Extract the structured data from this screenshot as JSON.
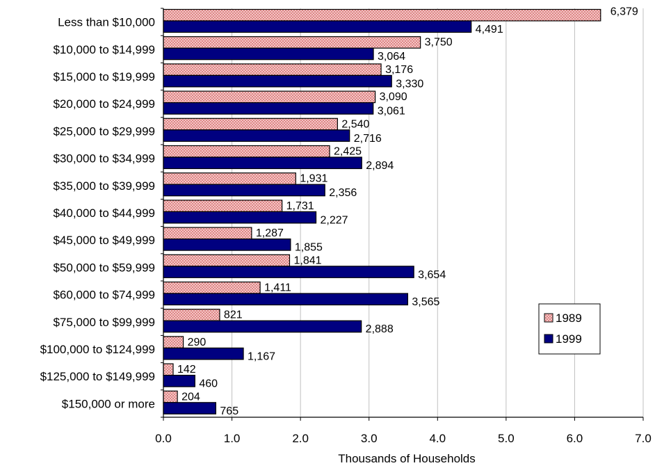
{
  "chart_data": {
    "type": "bar",
    "orientation": "horizontal",
    "categories": [
      "Less than $10,000",
      "$10,000 to $14,999",
      "$15,000 to $19,999",
      "$20,000 to $24,999",
      "$25,000 to $29,999",
      "$30,000 to $34,999",
      "$35,000 to $39,999",
      "$40,000 to $44,999",
      "$45,000 to $49,999",
      "$50,000 to $59,999",
      "$60,000 to $74,999",
      "$75,000 to $99,999",
      "$100,000 to $124,999",
      "$125,000 to $149,999",
      "$150,000 or more"
    ],
    "series": [
      {
        "name": "1989",
        "values": [
          6.379,
          3.75,
          3.176,
          3.09,
          2.54,
          2.425,
          1.931,
          1.731,
          1.287,
          1.841,
          1.411,
          0.821,
          0.29,
          0.142,
          0.204
        ],
        "labels": [
          "6,379",
          "3,750",
          "3,176",
          "3,090",
          "2,540",
          "2,425",
          "1,931",
          "1,731",
          "1,287",
          "1,841",
          "1,411",
          "821",
          "290",
          "142",
          "204"
        ],
        "fill": "#f4c6c6",
        "pattern": "dotted",
        "dot_color": "#c33a3a"
      },
      {
        "name": "1999",
        "values": [
          4.491,
          3.064,
          3.33,
          3.061,
          2.716,
          2.894,
          2.356,
          2.227,
          1.855,
          3.654,
          3.565,
          2.888,
          1.167,
          0.46,
          0.765
        ],
        "labels": [
          "4,491",
          "3,064",
          "3,330",
          "3,061",
          "2,716",
          "2,894",
          "2,356",
          "2,227",
          "1,855",
          "3,654",
          "3,565",
          "2,888",
          "1,167",
          "460",
          "765"
        ],
        "fill": "#000080"
      }
    ],
    "xlabel": "Thousands of Households",
    "ylabel": "",
    "xlim": [
      0,
      7.0
    ],
    "xticks": [
      "0.0",
      "1.0",
      "2.0",
      "3.0",
      "4.0",
      "5.0",
      "6.0",
      "7.0"
    ],
    "grid": "vertical",
    "gridline_color": "#c0c0c0",
    "legend": {
      "placement": "right",
      "entries": [
        "1989",
        "1999"
      ]
    }
  }
}
